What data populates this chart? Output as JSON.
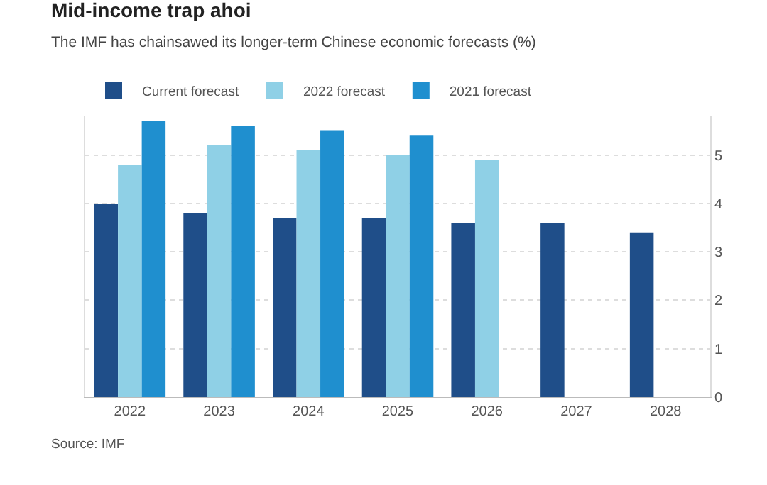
{
  "chart_data": {
    "type": "bar",
    "title": "Mid-income trap ahoi",
    "subtitle": "The IMF has chainsawed its longer-term Chinese economic forecasts (%)",
    "categories": [
      "2022",
      "2023",
      "2024",
      "2025",
      "2026",
      "2027",
      "2028"
    ],
    "series": [
      {
        "name": "Current forecast",
        "color": "#1f4e89",
        "values": [
          4.0,
          3.8,
          3.7,
          3.7,
          3.6,
          3.6,
          3.4
        ]
      },
      {
        "name": "2022 forecast",
        "color": "#8fd0e6",
        "values": [
          4.8,
          5.2,
          5.1,
          5.0,
          4.9,
          null,
          null
        ]
      },
      {
        "name": "2021 forecast",
        "color": "#1f8fcf",
        "values": [
          5.7,
          5.6,
          5.5,
          5.4,
          null,
          null,
          null
        ]
      }
    ],
    "ylim": [
      0,
      5.8
    ],
    "yticks": [
      0,
      1,
      2,
      3,
      4,
      5
    ],
    "grid": "y",
    "legend": "top left",
    "annotations": [
      "Source: IMF"
    ]
  }
}
